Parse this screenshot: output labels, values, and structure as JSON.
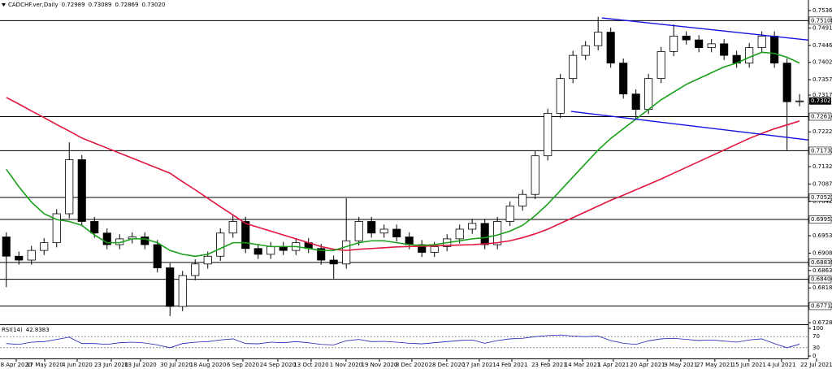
{
  "chart_data": {
    "type": "candlestick",
    "title": "CADCHF.ver,Daily",
    "header_values": [
      {
        "value": 0.72989,
        "label": "0.72989"
      },
      {
        "value": 0.73089,
        "label": "0.73089"
      },
      {
        "value": 0.72869,
        "label": "0.72869"
      },
      {
        "value": 0.7302,
        "label": "0.73020"
      }
    ],
    "up_color": "#ffffff",
    "down_color": "#000000",
    "xlim": [
      -0.5,
      63.7
    ],
    "xticks": [
      {
        "value": 0.79,
        "label": "8 Apr 2020"
      },
      {
        "value": 3.05,
        "label": "17 May 2020"
      },
      {
        "value": 5.63,
        "label": "4 Jun 2020"
      },
      {
        "value": 8.34,
        "label": "23 Jun 2020"
      },
      {
        "value": 10.66,
        "label": "13 Jul 2020"
      },
      {
        "value": 13.5,
        "label": "30 Jul 2020"
      },
      {
        "value": 16.02,
        "label": "18 Aug 2020"
      },
      {
        "value": 18.79,
        "label": "6 Sep 2020"
      },
      {
        "value": 21.56,
        "label": "24 Sep 2020"
      },
      {
        "value": 24.21,
        "label": "13 Oct 2020"
      },
      {
        "value": 26.98,
        "label": "1 Nov 2020"
      },
      {
        "value": 29.63,
        "label": "19 Nov 2020"
      },
      {
        "value": 32.21,
        "label": "8 Dec 2020"
      },
      {
        "value": 34.98,
        "label": "28 Dec 2020"
      },
      {
        "value": 37.56,
        "label": "17 Jan 2021"
      },
      {
        "value": 40.15,
        "label": "4 Feb 2021"
      },
      {
        "value": 43.11,
        "label": "23 Feb 2021"
      },
      {
        "value": 45.76,
        "label": "14 Mar 2021"
      },
      {
        "value": 48.21,
        "label": "1 Apr 2021"
      },
      {
        "value": 50.92,
        "label": "20 Apr 2021"
      },
      {
        "value": 53.56,
        "label": "9 May 2021"
      },
      {
        "value": 56.27,
        "label": "27 May 2021"
      },
      {
        "value": 58.98,
        "label": "15 Jun 2021"
      },
      {
        "value": 61.56,
        "label": "4 Jul 2021"
      },
      {
        "value": 64.34,
        "label": "22 Jul 2021"
      }
    ],
    "ylim": [
      0.6728,
      0.7536
    ],
    "yticks": [
      {
        "value": 0.7536,
        "label": "0.75360"
      },
      {
        "value": 0.7491,
        "label": "0.74910"
      },
      {
        "value": 0.7446,
        "label": "0.74460"
      },
      {
        "value": 0.7402,
        "label": "0.74020"
      },
      {
        "value": 0.7357,
        "label": "0.73570"
      },
      {
        "value": 0.7317,
        "label": "0.73170"
      },
      {
        "value": 0.7222,
        "label": "0.72220"
      },
      {
        "value": 0.7132,
        "label": "0.71320"
      },
      {
        "value": 0.7087,
        "label": "0.70870"
      },
      {
        "value": 0.7042,
        "label": "0.70420"
      },
      {
        "value": 0.6953,
        "label": "0.69530"
      },
      {
        "value": 0.6908,
        "label": "0.69080"
      },
      {
        "value": 0.6863,
        "label": "0.68630"
      },
      {
        "value": 0.6818,
        "label": "0.68180"
      },
      {
        "value": 0.6728,
        "label": "0.67280"
      }
    ],
    "levels": [
      {
        "value": 0.751,
        "label": "0.75100"
      },
      {
        "value": 0.72614,
        "label": "0.72614"
      },
      {
        "value": 0.71732,
        "label": "0.71732"
      },
      {
        "value": 0.70523,
        "label": "0.70523"
      },
      {
        "value": 0.69953,
        "label": "0.69953"
      },
      {
        "value": 0.68839,
        "label": "0.68839"
      },
      {
        "value": 0.68404,
        "label": "0.68404"
      },
      {
        "value": 0.67712,
        "label": "0.67712"
      }
    ],
    "last_price": {
      "value": 0.7302,
      "label": "0.73020"
    },
    "open": [
      0.695,
      0.69,
      0.689,
      0.6915,
      0.6935,
      0.701,
      0.715,
      0.699,
      0.696,
      0.693,
      0.6945,
      0.695,
      0.693,
      0.687,
      0.677,
      0.685,
      0.688,
      0.69,
      0.696,
      0.699,
      0.692,
      0.6905,
      0.6925,
      0.6915,
      0.6935,
      0.692,
      0.689,
      0.688,
      0.694,
      0.699,
      0.696,
      0.697,
      0.695,
      0.693,
      0.691,
      0.6925,
      0.6945,
      0.697,
      0.6985,
      0.693,
      0.699,
      0.703,
      0.706,
      0.716,
      0.727,
      0.736,
      0.742,
      0.7445,
      0.748,
      0.74,
      0.732,
      0.728,
      0.736,
      0.743,
      0.747,
      0.746,
      0.744,
      0.745,
      0.742,
      0.74,
      0.744,
      0.747,
      0.74,
      0.73
    ],
    "high": [
      0.6962,
      0.6912,
      0.6927,
      0.6947,
      0.7022,
      0.7195,
      0.7162,
      0.7002,
      0.6972,
      0.6957,
      0.6962,
      0.6962,
      0.6942,
      0.6882,
      0.6862,
      0.6892,
      0.6912,
      0.6972,
      0.7005,
      0.7002,
      0.6932,
      0.6937,
      0.6937,
      0.6947,
      0.6947,
      0.6932,
      0.6902,
      0.705,
      0.7002,
      0.7002,
      0.6982,
      0.6982,
      0.6962,
      0.6942,
      0.6937,
      0.6957,
      0.6982,
      0.6997,
      0.6997,
      0.7002,
      0.7042,
      0.7072,
      0.7172,
      0.7282,
      0.7372,
      0.7432,
      0.7457,
      0.752,
      0.7492,
      0.7412,
      0.7332,
      0.7372,
      0.7442,
      0.75,
      0.7482,
      0.7472,
      0.7462,
      0.7462,
      0.7432,
      0.7452,
      0.7482,
      0.7482,
      0.7412,
      0.732
    ],
    "low": [
      0.682,
      0.6878,
      0.6878,
      0.6903,
      0.6923,
      0.6998,
      0.6978,
      0.6948,
      0.6918,
      0.6918,
      0.6933,
      0.6918,
      0.6858,
      0.6745,
      0.6758,
      0.6838,
      0.6868,
      0.6888,
      0.6948,
      0.6908,
      0.6893,
      0.6893,
      0.6903,
      0.6903,
      0.6908,
      0.6878,
      0.684,
      0.6868,
      0.6928,
      0.6948,
      0.6948,
      0.6938,
      0.6918,
      0.6898,
      0.6898,
      0.6913,
      0.6933,
      0.6958,
      0.6918,
      0.6918,
      0.6978,
      0.7018,
      0.7048,
      0.7148,
      0.7258,
      0.7348,
      0.7408,
      0.7433,
      0.7388,
      0.7308,
      0.7255,
      0.7268,
      0.7348,
      0.7418,
      0.7448,
      0.7428,
      0.7428,
      0.7408,
      0.7388,
      0.7388,
      0.7428,
      0.7388,
      0.7175,
      0.7288
    ],
    "close": [
      0.69,
      0.689,
      0.6915,
      0.6935,
      0.701,
      0.715,
      0.699,
      0.696,
      0.693,
      0.6945,
      0.695,
      0.693,
      0.687,
      0.677,
      0.685,
      0.688,
      0.69,
      0.696,
      0.699,
      0.692,
      0.6905,
      0.6925,
      0.6915,
      0.6935,
      0.692,
      0.689,
      0.688,
      0.694,
      0.699,
      0.696,
      0.697,
      0.695,
      0.693,
      0.691,
      0.6925,
      0.6945,
      0.697,
      0.6985,
      0.693,
      0.699,
      0.703,
      0.706,
      0.716,
      0.727,
      0.736,
      0.742,
      0.7445,
      0.748,
      0.74,
      0.732,
      0.728,
      0.736,
      0.743,
      0.747,
      0.746,
      0.744,
      0.745,
      0.742,
      0.74,
      0.744,
      0.747,
      0.74,
      0.73,
      0.7302
    ],
    "moving_averages": [
      {
        "color": "#e0143c",
        "values": [
          0.7311,
          0.7294,
          0.7276,
          0.7259,
          0.7241,
          0.7224,
          0.7206,
          0.7193,
          0.718,
          0.7167,
          0.7154,
          0.7141,
          0.7128,
          0.7115,
          0.7093,
          0.7072,
          0.705,
          0.7028,
          0.7007,
          0.6985,
          0.6975,
          0.6965,
          0.6955,
          0.6945,
          0.6935,
          0.6925,
          0.6918,
          0.6915,
          0.6918,
          0.692,
          0.6922,
          0.6924,
          0.6925,
          0.6926,
          0.6927,
          0.6928,
          0.6929,
          0.693,
          0.6932,
          0.6935,
          0.694,
          0.6948,
          0.6958,
          0.697,
          0.6985,
          0.7,
          0.7015,
          0.703,
          0.7045,
          0.7058,
          0.7072,
          0.7086,
          0.71,
          0.7115,
          0.713,
          0.7145,
          0.716,
          0.7175,
          0.719,
          0.7205,
          0.7218,
          0.723,
          0.724,
          0.725
        ]
      },
      {
        "color": "#18a018",
        "values": [
          0.7125,
          0.708,
          0.704,
          0.701,
          0.6995,
          0.699,
          0.698,
          0.6955,
          0.6935,
          0.6935,
          0.6945,
          0.6945,
          0.6935,
          0.6915,
          0.6905,
          0.69,
          0.6905,
          0.692,
          0.6935,
          0.6935,
          0.693,
          0.6925,
          0.6925,
          0.6925,
          0.692,
          0.6915,
          0.6915,
          0.6925,
          0.6935,
          0.694,
          0.694,
          0.6935,
          0.693,
          0.6928,
          0.693,
          0.6935,
          0.694,
          0.6945,
          0.6948,
          0.6955,
          0.6965,
          0.698,
          0.7005,
          0.7035,
          0.707,
          0.7105,
          0.714,
          0.7175,
          0.7205,
          0.723,
          0.7255,
          0.728,
          0.7305,
          0.7325,
          0.7345,
          0.736,
          0.7375,
          0.739,
          0.74,
          0.7415,
          0.7428,
          0.7425,
          0.7415,
          0.74
        ]
      }
    ],
    "trendlines": [
      {
        "color": "#1010e0",
        "x": [
          47.3,
          65.3
        ],
        "values": [
          0.7517,
          0.7454
        ]
      },
      {
        "color": "#1010e0",
        "x": [
          44.85,
          63.7
        ],
        "values": [
          0.7275,
          0.7201
        ]
      }
    ],
    "rsi": {
      "title": "RSI(14)",
      "color": "#1c1cb4",
      "ylim": [
        0,
        100
      ],
      "yticks": [
        100,
        70,
        30,
        0
      ],
      "values": [
        45,
        42,
        50,
        52,
        60,
        68,
        45,
        45,
        42,
        48,
        50,
        47,
        40,
        30,
        45,
        50,
        52,
        58,
        62,
        45,
        44,
        50,
        48,
        52,
        48,
        42,
        40,
        55,
        60,
        52,
        53,
        50,
        46,
        44,
        48,
        52,
        56,
        58,
        46,
        56,
        62,
        64,
        70,
        74,
        76,
        72,
        70,
        72,
        56,
        46,
        42,
        55,
        62,
        64,
        60,
        56,
        58,
        54,
        50,
        58,
        62,
        45,
        30,
        42.8383
      ]
    }
  }
}
